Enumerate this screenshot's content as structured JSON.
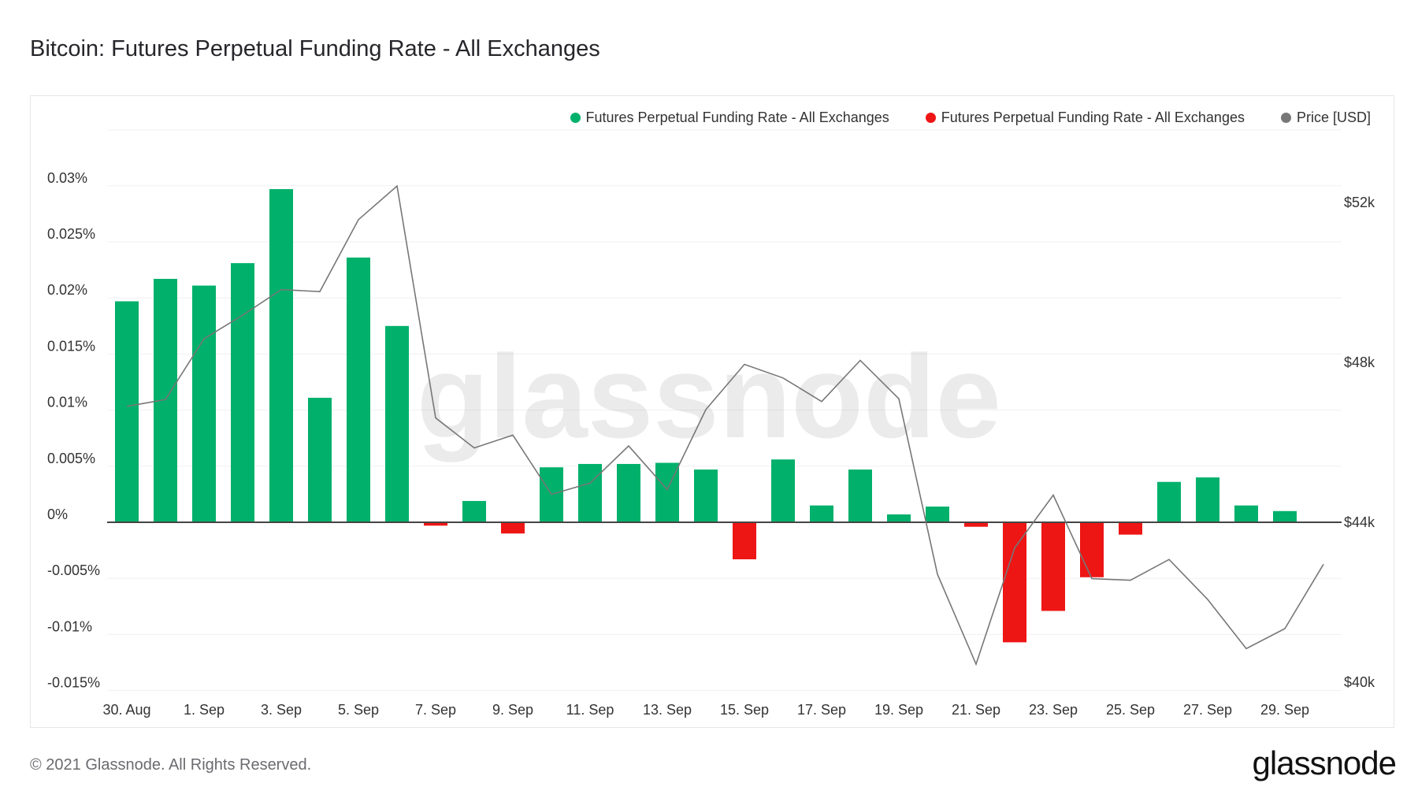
{
  "title": "Bitcoin: Futures Perpetual Funding Rate - All Exchanges",
  "footer": "© 2021 Glassnode. All Rights Reserved.",
  "logo": "glassnode",
  "watermark": "glassnode",
  "colors": {
    "positive": "#00b06b",
    "negative": "#ee1515",
    "price": "#777777"
  },
  "legend": [
    {
      "label": "Futures Perpetual Funding Rate - All Exchanges",
      "color": "#00b06b"
    },
    {
      "label": "Futures Perpetual Funding Rate - All Exchanges",
      "color": "#ee1515"
    },
    {
      "label": "Price [USD]",
      "color": "#777777"
    }
  ],
  "chart_data": {
    "type": "bar+line",
    "title": "Bitcoin: Futures Perpetual Funding Rate - All Exchanges",
    "x": [
      "30. Aug",
      "31. Aug",
      "1. Sep",
      "2. Sep",
      "3. Sep",
      "4. Sep",
      "5. Sep",
      "6. Sep",
      "7. Sep",
      "8. Sep",
      "9. Sep",
      "10. Sep",
      "11. Sep",
      "12. Sep",
      "13. Sep",
      "14. Sep",
      "15. Sep",
      "16. Sep",
      "17. Sep",
      "18. Sep",
      "19. Sep",
      "20. Sep",
      "21. Sep",
      "22. Sep",
      "23. Sep",
      "24. Sep",
      "25. Sep",
      "26. Sep",
      "27. Sep",
      "28. Sep",
      "29. Sep",
      "30. Sep"
    ],
    "x_tick_labels": [
      "30. Aug",
      "1. Sep",
      "3. Sep",
      "5. Sep",
      "7. Sep",
      "9. Sep",
      "11. Sep",
      "13. Sep",
      "15. Sep",
      "17. Sep",
      "19. Sep",
      "21. Sep",
      "23. Sep",
      "25. Sep",
      "27. Sep",
      "29. Sep"
    ],
    "series": [
      {
        "name": "Futures Perpetual Funding Rate - All Exchanges",
        "axis": "left",
        "unit": "%",
        "values": [
          0.0197,
          0.0217,
          0.0211,
          0.0231,
          0.0297,
          0.0111,
          0.0236,
          0.0175,
          -0.0003,
          0.0019,
          -0.001,
          0.0049,
          0.0052,
          0.0052,
          0.0053,
          0.0047,
          -0.0033,
          0.0056,
          0.0015,
          0.0047,
          0.0007,
          0.0014,
          -0.0004,
          -0.0107,
          -0.0079,
          -0.0049,
          -0.0011,
          0.0036,
          0.004,
          0.0015,
          0.001,
          null
        ]
      },
      {
        "name": "Price [USD]",
        "axis": "right",
        "type": "line",
        "values": [
          46900,
          47070,
          48590,
          49180,
          49820,
          49770,
          51570,
          52410,
          46610,
          45860,
          46180,
          44700,
          44980,
          45910,
          44820,
          46820,
          47950,
          47610,
          47020,
          48050,
          47090,
          42700,
          40450,
          43360,
          44680,
          42590,
          42550,
          43070,
          42070,
          40840,
          41340,
          42950
        ]
      }
    ],
    "y_left": {
      "ticks": [
        "-0.015%",
        "-0.01%",
        "-0.005%",
        "0%",
        "0.005%",
        "0.01%",
        "0.015%",
        "0.02%",
        "0.025%",
        "0.03%"
      ],
      "values": [
        -0.015,
        -0.01,
        -0.005,
        0,
        0.005,
        0.01,
        0.015,
        0.02,
        0.025,
        0.03
      ]
    },
    "y_right": {
      "ticks": [
        "$40k",
        "$44k",
        "$48k",
        "$52k"
      ],
      "values": [
        40000,
        44000,
        48000,
        52000
      ]
    },
    "grid": true,
    "legend_position": "top-right"
  }
}
